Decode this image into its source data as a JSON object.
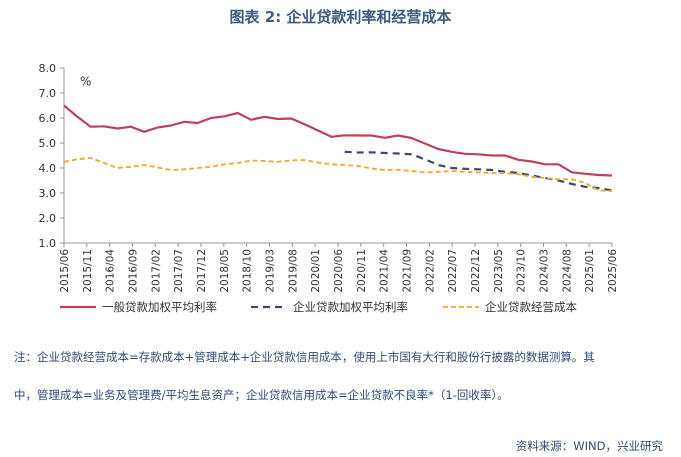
{
  "title": "图表 2:  企业贷款利率和经营成本",
  "chart_data": {
    "type": "line",
    "ylabel": "%",
    "ylim": [
      1.0,
      8.0
    ],
    "y_ticks": [
      "8.0",
      "7.0",
      "6.0",
      "5.0",
      "4.0",
      "3.0",
      "2.0",
      "1.0"
    ],
    "x_tick_labels": [
      "2015/06",
      "2015/11",
      "2016/04",
      "2016/09",
      "2017/02",
      "2017/07",
      "2017/12",
      "2018/05",
      "2018/10",
      "2019/03",
      "2019/08",
      "2020/01",
      "2020/06",
      "2020/11",
      "2021/04",
      "2021/09",
      "2022/02",
      "2022/07",
      "2022/12",
      "2023/05",
      "2023/10",
      "2024/03",
      "2024/08",
      "2025/01",
      "2025/06"
    ],
    "series": [
      {
        "name": "一般贷款加权平均利率",
        "color": "#c0405a",
        "style": "solid",
        "values": [
          6.5,
          6.05,
          5.65,
          5.67,
          5.58,
          5.65,
          5.45,
          5.62,
          5.7,
          5.85,
          5.8,
          6.0,
          6.07,
          6.2,
          5.93,
          6.05,
          5.96,
          5.98,
          5.75,
          5.5,
          5.25,
          5.31,
          5.3,
          5.3,
          5.21,
          5.3,
          5.2,
          4.98,
          4.76,
          4.65,
          4.57,
          4.55,
          4.5,
          4.5,
          4.33,
          4.26,
          4.15,
          4.15,
          3.83,
          3.77,
          3.72,
          3.7
        ]
      },
      {
        "name": "企业贷款加权平均利率",
        "color": "#3b4a6b",
        "style": "dashed",
        "values": [
          null,
          null,
          null,
          null,
          null,
          null,
          null,
          null,
          null,
          null,
          null,
          null,
          null,
          null,
          null,
          null,
          null,
          null,
          null,
          null,
          null,
          4.65,
          4.62,
          4.63,
          4.6,
          4.58,
          4.55,
          4.35,
          4.12,
          4.0,
          3.97,
          3.95,
          3.92,
          3.85,
          3.8,
          3.7,
          3.6,
          3.5,
          3.36,
          3.25,
          3.2,
          3.1
        ]
      },
      {
        "name": "企业贷款经营成本",
        "color": "#f0a830",
        "style": "dashed",
        "values": [
          4.25,
          4.35,
          4.4,
          4.2,
          4.0,
          4.05,
          4.12,
          4.02,
          3.92,
          3.95,
          4.0,
          4.05,
          4.15,
          4.2,
          4.3,
          4.28,
          4.25,
          4.3,
          4.32,
          4.22,
          4.15,
          4.12,
          4.08,
          3.98,
          3.92,
          3.93,
          3.88,
          3.82,
          3.85,
          3.88,
          3.85,
          3.82,
          3.8,
          3.8,
          3.75,
          3.65,
          3.6,
          3.55,
          3.55,
          3.4,
          3.1,
          3.08
        ]
      }
    ],
    "legend_position": "bottom"
  },
  "notes": {
    "line1": "注：企业贷款经营成本=存款成本+管理成本+企业贷款信用成本，使用上市国有大行和股份行披露的数据测算。其",
    "line2": "中，管理成本=业务及管理费/平均生息资产；企业贷款信用成本=企业贷款不良率*（1-回收率）。"
  },
  "source": "资料来源：WIND，兴业研究"
}
